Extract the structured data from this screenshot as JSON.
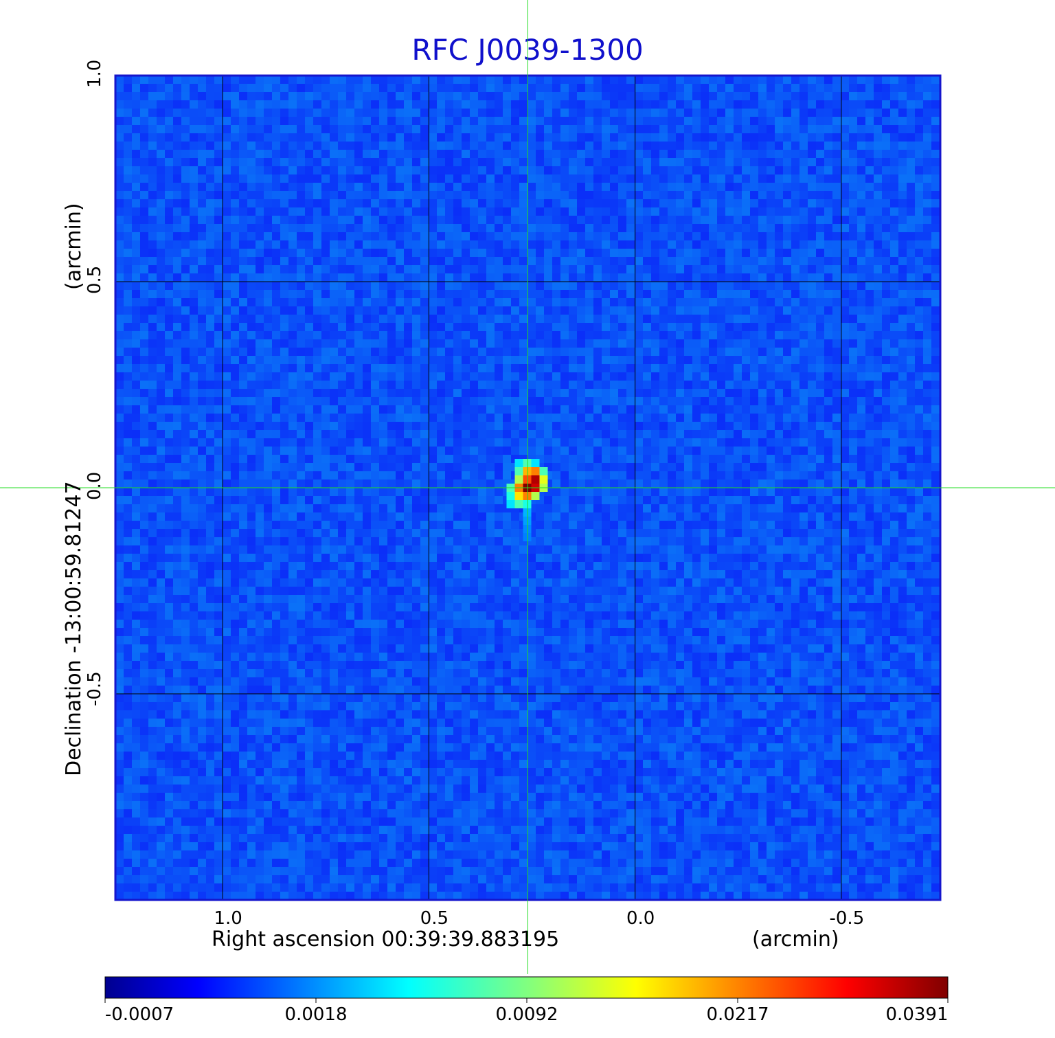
{
  "chart_data": {
    "type": "heatmap",
    "title": "RFC J0039-1300",
    "xlabel": "Right ascension  00:39:39.883195",
    "xunit": "(arcmin)",
    "ylabel": "Declination  -13:00:59.81247",
    "yunit": "(arcmin)",
    "xlim": [
      1.26,
      -0.74
    ],
    "ylim": [
      -1.0,
      1.0
    ],
    "xticks": [
      1.0,
      0.5,
      0.0,
      -0.5
    ],
    "xtick_labels": [
      "1.0",
      "0.5",
      "0.0",
      "-0.5"
    ],
    "yticks": [
      1.0,
      0.5,
      0.0,
      -0.5
    ],
    "ytick_labels": [
      "1.0",
      "0.5",
      "0.0",
      "-0.5"
    ],
    "grid": true,
    "crosshair": {
      "x": 0.26,
      "y": 0.0
    },
    "source_peak": {
      "x": 0.26,
      "y": 0.0,
      "value": 0.0391
    },
    "colormap": "jet",
    "colorbar": {
      "ticks": [
        -0.0007,
        0.0018,
        0.0092,
        0.0217,
        0.0391
      ],
      "tick_labels": [
        "-0.0007",
        "0.0018",
        "0.0092",
        "0.0217",
        "0.0391"
      ]
    },
    "colors": {
      "background": "#1a55f0",
      "title": "#1010cc",
      "crosshair": "#22dd22",
      "frame": "#1515cc"
    }
  }
}
